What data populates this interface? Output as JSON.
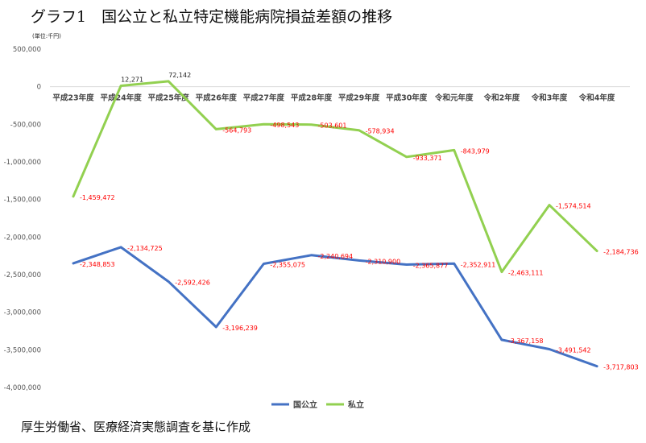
{
  "title": "グラフ1　国公立と私立特定機能病院損益差額の推移",
  "unit_label": "(単位:千円)",
  "source": "厚生労働省、医療経済実態調査を基に作成",
  "chart_data": {
    "type": "line",
    "categories": [
      "平成23年度",
      "平成24年度",
      "平成25年度",
      "平成26年度",
      "平成27年度",
      "平成28年度",
      "平成29年度",
      "平成30年度",
      "令和元年度",
      "令和2年度",
      "令和3年度",
      "令和4年度"
    ],
    "ylim": [
      -4000000,
      500000
    ],
    "yticks": [
      500000,
      0,
      -500000,
      -1000000,
      -1500000,
      -2000000,
      -2500000,
      -3000000,
      -3500000,
      -4000000
    ],
    "ytick_labels": [
      "500,000",
      "0",
      "-500,000",
      "-1,000,000",
      "-1,500,000",
      "-2,000,000",
      "-2,500,000",
      "-3,000,000",
      "-3,500,000",
      "-4,000,000"
    ],
    "grid": false,
    "legend_position": "bottom",
    "series": [
      {
        "name": "国公立",
        "color": "#4472c4",
        "values": [
          -2348853,
          -2134725,
          -2592426,
          -3196239,
          -2355075,
          -2240694,
          -2310900,
          -2365877,
          -2352911,
          -3367158,
          -3491542,
          -3717803
        ],
        "labels": [
          "-2,348,853",
          "-2,134,725",
          "-2,592,426",
          "-3,196,239",
          "-2,355,075",
          "-2,240,694",
          "-2,310,900",
          "-2,365,877",
          "-2,352,911",
          "-3,367,158",
          "-3,491,542",
          "-3,717,803"
        ]
      },
      {
        "name": "私立",
        "color": "#92d050",
        "values": [
          -1459472,
          12271,
          72142,
          -564793,
          -498543,
          -503601,
          -578934,
          -933371,
          -843979,
          -2463111,
          -1574514,
          -2184736
        ],
        "labels": [
          "-1,459,472",
          "12,271",
          "72,142",
          "-564,793",
          "-498,543",
          "-503,601",
          "-578,934",
          "-933,371",
          "-843,979",
          "-2,463,111",
          "-1,574,514",
          "-2,184,736"
        ]
      }
    ]
  }
}
